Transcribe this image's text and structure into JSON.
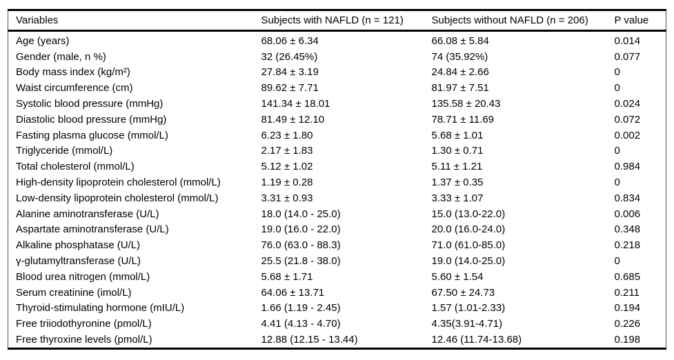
{
  "table": {
    "headers": {
      "variables": "Variables",
      "nafld": "Subjects with NAFLD (n = 121)",
      "without_nafld": "Subjects without NAFLD (n = 206)",
      "p_value": "P value"
    },
    "rows": [
      {
        "variable": "Age (years)",
        "nafld": "68.06 ± 6.34",
        "without_nafld": "66.08 ± 5.84",
        "p_value": "0.014"
      },
      {
        "variable": "Gender (male, n %)",
        "nafld": "32 (26.45%)",
        "without_nafld": "74 (35.92%)",
        "p_value": "0.077"
      },
      {
        "variable": "Body mass index (kg/m²)",
        "nafld": "27.84 ± 3.19",
        "without_nafld": "24.84 ± 2.66",
        "p_value": "0"
      },
      {
        "variable": "Waist circumference (cm)",
        "nafld": "89.62 ± 7.71",
        "without_nafld": "81.97 ± 7.51",
        "p_value": "0"
      },
      {
        "variable": "Systolic blood pressure (mmHg)",
        "nafld": "141.34 ± 18.01",
        "without_nafld": "135.58 ± 20.43",
        "p_value": "0.024"
      },
      {
        "variable": "Diastolic blood pressure (mmHg)",
        "nafld": "81.49 ± 12.10",
        "without_nafld": "78.71 ± 11.69",
        "p_value": "0.072"
      },
      {
        "variable": "Fasting plasma glucose (mmol/L)",
        "nafld": "6.23 ± 1.80",
        "without_nafld": "5.68 ± 1.01",
        "p_value": "0.002"
      },
      {
        "variable": "Triglyceride (mmol/L)",
        "nafld": "2.17 ± 1.83",
        "without_nafld": "1.30 ± 0.71",
        "p_value": "0"
      },
      {
        "variable": "Total cholesterol (mmol/L)",
        "nafld": "5.12 ± 1.02",
        "without_nafld": "5.11 ± 1.21",
        "p_value": "0.984"
      },
      {
        "variable": "High-density lipoprotein cholesterol (mmol/L)",
        "nafld": "1.19 ± 0.28",
        "without_nafld": "1.37 ± 0.35",
        "p_value": "0"
      },
      {
        "variable": "Low-density lipoprotein cholesterol (mmol/L)",
        "nafld": "3.31 ± 0.93",
        "without_nafld": "3.33 ± 1.07",
        "p_value": "0.834"
      },
      {
        "variable": "Alanine aminotransferase (U/L)",
        "nafld": "18.0 (14.0 - 25.0)",
        "without_nafld": "15.0 (13.0-22.0)",
        "p_value": "0.006"
      },
      {
        "variable": "Aspartate aminotransferase (U/L)",
        "nafld": "19.0 (16.0 - 22.0)",
        "without_nafld": "20.0 (16.0-24.0)",
        "p_value": "0.348"
      },
      {
        "variable": "Alkaline phosphatase (U/L)",
        "nafld": "76.0 (63.0 - 88.3)",
        "without_nafld": "71.0 (61.0-85.0)",
        "p_value": "0.218"
      },
      {
        "variable": "γ-glutamyltransferase (U/L)",
        "nafld": "25.5 (21.8 - 38.0)",
        "without_nafld": "19.0 (14.0-25.0)",
        "p_value": "0"
      },
      {
        "variable": "Blood urea nitrogen (mmol/L)",
        "nafld": "5.68 ± 1.71",
        "without_nafld": "5.60 ± 1.54",
        "p_value": "0.685"
      },
      {
        "variable": "Serum creatinine (imol/L)",
        "nafld": "64.06 ± 13.71",
        "without_nafld": "67.50 ± 24.73",
        "p_value": "0.211"
      },
      {
        "variable": "Thyroid-stimulating hormone (mIU/L)",
        "nafld": "1.66 (1.19 - 2.45)",
        "without_nafld": "1.57 (1.01-2.33)",
        "p_value": "0.194"
      },
      {
        "variable": "Free triiodothyronine (pmol/L)",
        "nafld": "4.41 (4.13 - 4.70)",
        "without_nafld": "4.35(3.91-4.71)",
        "p_value": "0.226"
      },
      {
        "variable": "Free thyroxine levels (pmol/L)",
        "nafld": "12.88 (12.15 - 13.44)",
        "without_nafld": "12.46 (11.74-13.68)",
        "p_value": "0.198"
      }
    ],
    "colors": {
      "text": "#000000",
      "rule": "#000000",
      "side_border": "#4d4d4d",
      "background": "#ffffff"
    }
  }
}
